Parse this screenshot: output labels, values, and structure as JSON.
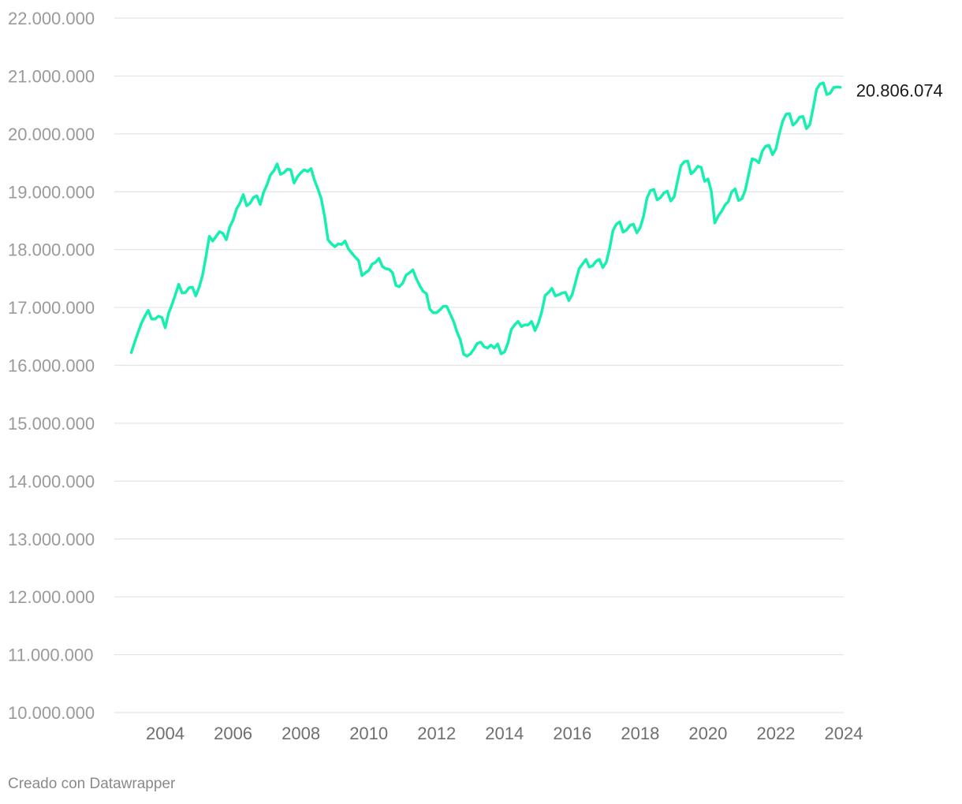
{
  "chart_data": {
    "type": "line",
    "title": "",
    "xlabel": "",
    "ylabel": "",
    "ylim": [
      10000000,
      22000000
    ],
    "xlim": [
      2002.5,
      2024
    ],
    "y_ticks": [
      10000000,
      11000000,
      12000000,
      13000000,
      14000000,
      15000000,
      16000000,
      17000000,
      18000000,
      19000000,
      20000000,
      21000000,
      22000000
    ],
    "y_tick_labels": [
      "10.000.000",
      "11.000.000",
      "12.000.000",
      "13.000.000",
      "14.000.000",
      "15.000.000",
      "16.000.000",
      "17.000.000",
      "18.000.000",
      "19.000.000",
      "20.000.000",
      "21.000.000",
      "22.000.000"
    ],
    "x_ticks": [
      2004,
      2006,
      2008,
      2010,
      2012,
      2014,
      2016,
      2018,
      2020,
      2022,
      2024
    ],
    "x_tick_labels": [
      "2004",
      "2006",
      "2008",
      "2010",
      "2012",
      "2014",
      "2016",
      "2018",
      "2020",
      "2022",
      "2024"
    ],
    "grid": true,
    "legend": "none",
    "series_color": "#15f0b0",
    "end_label": "20.806.074",
    "series": [
      {
        "x": [
          2003.0,
          2003.1,
          2003.2,
          2003.3,
          2003.4,
          2003.5,
          2003.6,
          2003.7,
          2003.8,
          2003.9,
          2004.0,
          2004.1,
          2004.2,
          2004.3,
          2004.4,
          2004.5,
          2004.6,
          2004.7,
          2004.8,
          2004.9,
          2005.0,
          2005.1,
          2005.2,
          2005.3,
          2005.4,
          2005.5,
          2005.6,
          2005.7,
          2005.8,
          2005.9,
          2006.0,
          2006.1,
          2006.2,
          2006.3,
          2006.4,
          2006.5,
          2006.6,
          2006.7,
          2006.8,
          2006.9,
          2007.0,
          2007.1,
          2007.2,
          2007.3,
          2007.4,
          2007.5,
          2007.6,
          2007.7,
          2007.8,
          2007.9,
          2008.0,
          2008.1,
          2008.2,
          2008.3,
          2008.4,
          2008.5,
          2008.6,
          2008.7,
          2008.8,
          2008.9,
          2009.0,
          2009.1,
          2009.2,
          2009.3,
          2009.4,
          2009.5,
          2009.6,
          2009.7,
          2009.8,
          2009.9,
          2010.0,
          2010.1,
          2010.2,
          2010.3,
          2010.4,
          2010.5,
          2010.6,
          2010.7,
          2010.8,
          2010.9,
          2011.0,
          2011.1,
          2011.2,
          2011.3,
          2011.4,
          2011.5,
          2011.6,
          2011.7,
          2011.8,
          2011.9,
          2012.0,
          2012.1,
          2012.2,
          2012.3,
          2012.4,
          2012.5,
          2012.6,
          2012.7,
          2012.8,
          2012.9,
          2013.0,
          2013.1,
          2013.2,
          2013.3,
          2013.4,
          2013.5,
          2013.6,
          2013.7,
          2013.8,
          2013.9,
          2014.0,
          2014.1,
          2014.2,
          2014.3,
          2014.4,
          2014.5,
          2014.6,
          2014.7,
          2014.8,
          2014.9,
          2015.0,
          2015.1,
          2015.2,
          2015.3,
          2015.4,
          2015.5,
          2015.6,
          2015.7,
          2015.8,
          2015.9,
          2016.0,
          2016.1,
          2016.2,
          2016.3,
          2016.4,
          2016.5,
          2016.6,
          2016.7,
          2016.8,
          2016.9,
          2017.0,
          2017.1,
          2017.2,
          2017.3,
          2017.4,
          2017.5,
          2017.6,
          2017.7,
          2017.8,
          2017.9,
          2018.0,
          2018.1,
          2018.2,
          2018.3,
          2018.4,
          2018.5,
          2018.6,
          2018.7,
          2018.8,
          2018.9,
          2019.0,
          2019.1,
          2019.2,
          2019.3,
          2019.4,
          2019.5,
          2019.6,
          2019.7,
          2019.8,
          2019.9,
          2020.0,
          2020.1,
          2020.2,
          2020.3,
          2020.4,
          2020.5,
          2020.6,
          2020.7,
          2020.8,
          2020.9,
          2021.0,
          2021.1,
          2021.2,
          2021.3,
          2021.4,
          2021.5,
          2021.6,
          2021.7,
          2021.8,
          2021.9,
          2022.0,
          2022.1,
          2022.2,
          2022.3,
          2022.4,
          2022.5,
          2022.6,
          2022.7,
          2022.8,
          2022.9,
          2023.0,
          2023.1,
          2023.2,
          2023.3,
          2023.4,
          2023.5,
          2023.6,
          2023.7,
          2023.8,
          2023.9
        ],
        "values": [
          16220000,
          16400000,
          16570000,
          16730000,
          16850000,
          16950000,
          16800000,
          16800000,
          16850000,
          16830000,
          16650000,
          16900000,
          17050000,
          17220000,
          17400000,
          17250000,
          17260000,
          17340000,
          17350000,
          17200000,
          17350000,
          17560000,
          17880000,
          18230000,
          18150000,
          18230000,
          18310000,
          18280000,
          18170000,
          18390000,
          18510000,
          18700000,
          18800000,
          18950000,
          18760000,
          18800000,
          18900000,
          18930000,
          18780000,
          18990000,
          19120000,
          19290000,
          19360000,
          19480000,
          19300000,
          19330000,
          19390000,
          19380000,
          19150000,
          19260000,
          19330000,
          19380000,
          19350000,
          19400000,
          19200000,
          19050000,
          18880000,
          18570000,
          18170000,
          18100000,
          18050000,
          18100000,
          18090000,
          18150000,
          18010000,
          17940000,
          17870000,
          17810000,
          17550000,
          17600000,
          17640000,
          17750000,
          17780000,
          17850000,
          17710000,
          17670000,
          17660000,
          17600000,
          17380000,
          17360000,
          17420000,
          17560000,
          17600000,
          17650000,
          17500000,
          17380000,
          17280000,
          17240000,
          16970000,
          16910000,
          16910000,
          16960000,
          17020000,
          17020000,
          16890000,
          16760000,
          16580000,
          16440000,
          16190000,
          16160000,
          16200000,
          16280000,
          16380000,
          16400000,
          16320000,
          16300000,
          16350000,
          16300000,
          16370000,
          16200000,
          16230000,
          16380000,
          16620000,
          16700000,
          16760000,
          16670000,
          16700000,
          16700000,
          16760000,
          16600000,
          16730000,
          16930000,
          17210000,
          17260000,
          17330000,
          17200000,
          17220000,
          17250000,
          17260000,
          17120000,
          17230000,
          17450000,
          17670000,
          17750000,
          17830000,
          17700000,
          17720000,
          17800000,
          17830000,
          17690000,
          17780000,
          18020000,
          18330000,
          18440000,
          18480000,
          18300000,
          18340000,
          18420000,
          18440000,
          18290000,
          18380000,
          18580000,
          18890000,
          19020000,
          19040000,
          18860000,
          18900000,
          18980000,
          19010000,
          18840000,
          18910000,
          19180000,
          19450000,
          19520000,
          19530000,
          19310000,
          19360000,
          19440000,
          19420000,
          19180000,
          19220000,
          19000000,
          18460000,
          18580000,
          18660000,
          18770000,
          18830000,
          19000000,
          19050000,
          18850000,
          18880000,
          19030000,
          19300000,
          19570000,
          19550000,
          19500000,
          19700000,
          19790000,
          19800000,
          19640000,
          19740000,
          20000000,
          20220000,
          20340000,
          20350000,
          20150000,
          20200000,
          20290000,
          20300000,
          20090000,
          20160000,
          20450000,
          20770000,
          20860000,
          20880000,
          20680000,
          20700000,
          20800000,
          20810000,
          20806074
        ]
      }
    ]
  },
  "footer": {
    "credit": "Creado con Datawrapper"
  }
}
